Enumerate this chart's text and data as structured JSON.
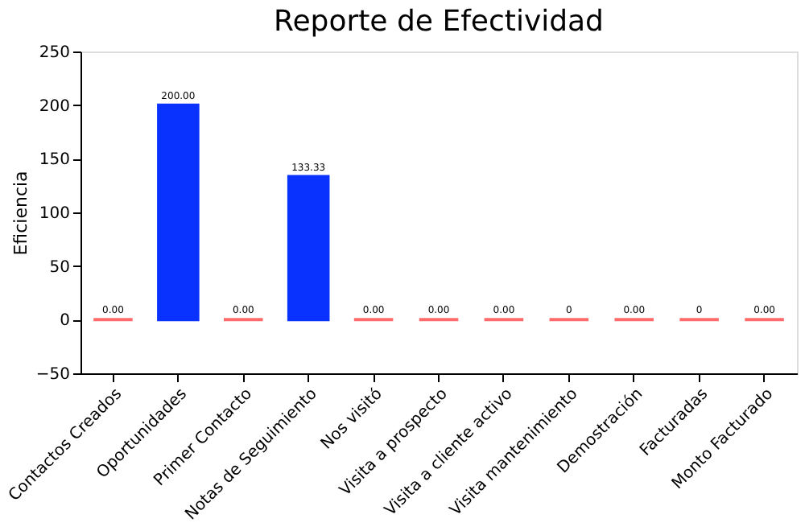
{
  "chart_data": {
    "type": "bar",
    "title": "Reporte de Efectividad",
    "ylabel": "Eficiencia",
    "categories": [
      "Contactos Creados",
      "Oportunidades",
      "Primer Contacto",
      "Notas de Seguimiento",
      "Nos visitó",
      "Visita a prospecto",
      "Visita a cliente activo",
      "Visita mantenimiento",
      "Demostración",
      "Facturadas",
      "Monto Facturado"
    ],
    "values": [
      0,
      200,
      0,
      133.33,
      0,
      0,
      0,
      0,
      0,
      0,
      0
    ],
    "value_labels": [
      "0.00",
      "200.00",
      "0.00",
      "133.33",
      "0.00",
      "0.00",
      "0.00",
      "0",
      "0.00",
      "0",
      "0.00"
    ],
    "colors": [
      "#ff6b6b",
      "#0a32ff",
      "#ff6b6b",
      "#0a32ff",
      "#ff6b6b",
      "#ff6b6b",
      "#ff6b6b",
      "#ff6b6b",
      "#ff6b6b",
      "#ff6b6b",
      "#ff6b6b"
    ],
    "ylim": [
      -50,
      250
    ],
    "yticks": [
      -50,
      0,
      50,
      100,
      150,
      200,
      250
    ],
    "grid": false
  }
}
